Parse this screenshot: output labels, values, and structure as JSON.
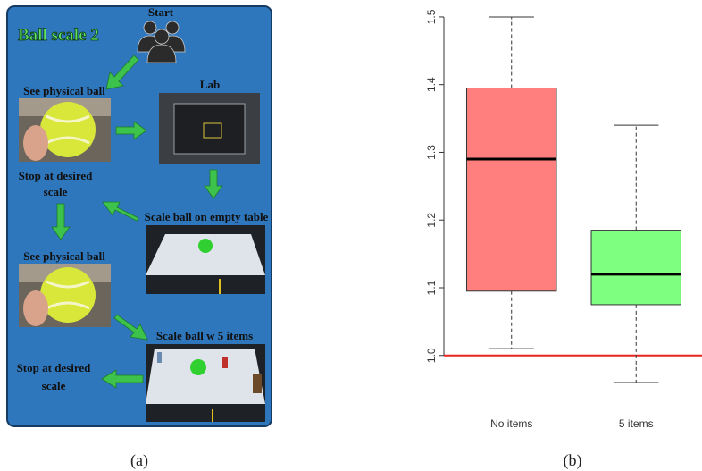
{
  "diagram": {
    "title": "Ball scale 2",
    "start": "Start",
    "steps": [
      {
        "lines": [
          "See physical ball"
        ]
      },
      {
        "lines": [
          "Lab"
        ]
      },
      {
        "lines": [
          "Stop at desired",
          "scale"
        ]
      },
      {
        "lines": [
          "Scale ball on empty table"
        ]
      },
      {
        "lines": [
          "See physical ball"
        ]
      },
      {
        "lines": [
          "Scale ball w 5 items"
        ]
      },
      {
        "lines": [
          "Stop at desired",
          "scale"
        ]
      }
    ]
  },
  "captions": [
    "(a)",
    "(b)"
  ],
  "chart_data": {
    "type": "box",
    "categories": [
      "No items",
      "5 items"
    ],
    "colors": [
      "#ff7f7f",
      "#7fff7f"
    ],
    "whislo": [
      1.01,
      0.96
    ],
    "q1": [
      1.095,
      1.075
    ],
    "median": [
      1.29,
      1.12
    ],
    "q3": [
      1.395,
      1.185
    ],
    "whishi": [
      1.5,
      1.34
    ],
    "hline": {
      "value": 1,
      "color": "#e8261e"
    },
    "ylim": [
      0.935,
      1.525
    ],
    "yticks": [
      {
        "value": 1,
        "label": "1.0"
      },
      1.1,
      1.2,
      1.3,
      1.4,
      1.5
    ]
  }
}
